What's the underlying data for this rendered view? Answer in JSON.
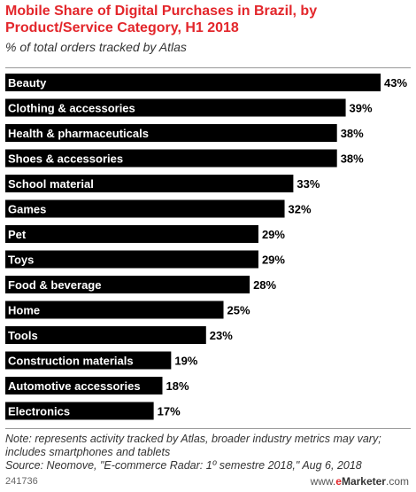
{
  "header": {
    "title": "Mobile Share of Digital Purchases in Brazil, by Product/Service Category, H1 2018",
    "subtitle": "% of total orders tracked by Atlas"
  },
  "chart_data": {
    "type": "bar",
    "orientation": "horizontal",
    "categories": [
      "Beauty",
      "Clothing & accessories",
      "Health & pharmaceuticals",
      "Shoes & accessories",
      "School material",
      "Games",
      "Pet",
      "Toys",
      "Food & beverage",
      "Home",
      "Tools",
      "Construction materials",
      "Automotive accessories",
      "Electronics"
    ],
    "values": [
      43,
      39,
      38,
      38,
      33,
      32,
      29,
      29,
      28,
      25,
      23,
      19,
      18,
      17
    ],
    "value_labels": [
      "43%",
      "39%",
      "38%",
      "38%",
      "33%",
      "32%",
      "29%",
      "29%",
      "28%",
      "25%",
      "23%",
      "19%",
      "18%",
      "17%"
    ],
    "unit": "%",
    "bar_color": "#000000",
    "label_color": "#ffffff",
    "grid": false,
    "legend": "none"
  },
  "footer": {
    "note": "Note: represents activity tracked by Atlas, broader industry metrics may vary; includes smartphones and tablets",
    "source": "Source: Neomove, \"E-commerce Radar: 1º semestre 2018,\" Aug 6, 2018",
    "chart_id": "241736",
    "brand_prefix": "www.",
    "brand_e": "e",
    "brand_name": "Marketer",
    "brand_suffix": ".com"
  },
  "colors": {
    "title": "#e3262b",
    "bars": "#000000",
    "rules": "#999999"
  }
}
